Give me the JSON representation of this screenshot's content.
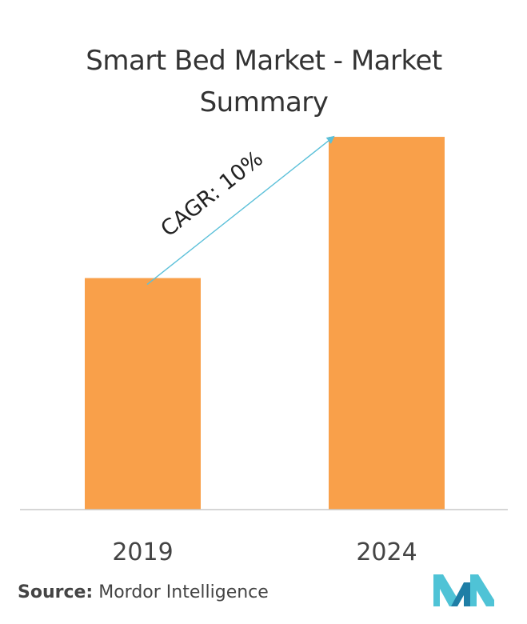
{
  "chart_data": {
    "type": "bar",
    "title": "Smart Bed Market - Market Summary",
    "categories": [
      "2019",
      "2024"
    ],
    "values": [
      1.0,
      1.61
    ],
    "annotation": "CAGR: 10%",
    "bar_color": "#F9A04A",
    "arrow_color": "#5BC0D9",
    "axis_color": "#C8C8C8",
    "ylim": [
      0,
      1.7
    ],
    "grid": false,
    "legend": "none"
  },
  "source": {
    "label": "Source:",
    "text": "Mordor Intelligence"
  },
  "logo": {
    "colors": [
      "#1F7EA6",
      "#4FC3D6"
    ]
  }
}
